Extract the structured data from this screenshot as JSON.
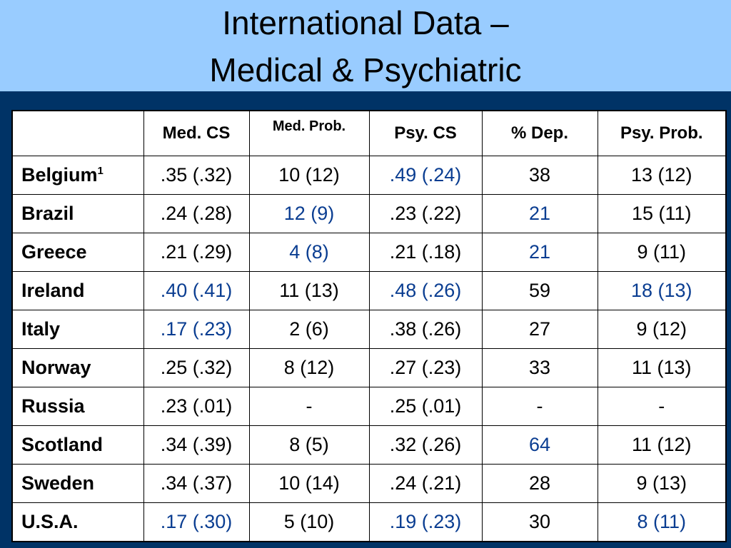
{
  "title": {
    "line1": "International Data –",
    "line2": "Medical & Psychiatric"
  },
  "table": {
    "columns": [
      "",
      "Med. CS",
      "Med. Prob.",
      "Psy. CS",
      "% Dep.",
      "Psy. Prob."
    ],
    "rows": [
      {
        "country": "Belgium",
        "note": "1",
        "cells": [
          ".35 (.32)",
          "10 (12)",
          ".49 (.24)",
          "38",
          "13 (12)"
        ],
        "highlight": [
          false,
          false,
          true,
          false,
          false
        ]
      },
      {
        "country": "Brazil",
        "note": "",
        "cells": [
          ".24 (.28)",
          "12 (9)",
          ".23 (.22)",
          "21",
          "15 (11)"
        ],
        "highlight": [
          false,
          true,
          false,
          true,
          false
        ]
      },
      {
        "country": "Greece",
        "note": "",
        "cells": [
          ".21 (.29)",
          "4 (8)",
          ".21 (.18)",
          "21",
          "9 (11)"
        ],
        "highlight": [
          false,
          true,
          false,
          true,
          false
        ]
      },
      {
        "country": "Ireland",
        "note": "",
        "cells": [
          ".40 (.41)",
          "11 (13)",
          ".48 (.26)",
          "59",
          "18 (13)"
        ],
        "highlight": [
          true,
          false,
          true,
          false,
          true
        ]
      },
      {
        "country": "Italy",
        "note": "",
        "cells": [
          ".17 (.23)",
          "2 (6)",
          ".38 (.26)",
          "27",
          "9 (12)"
        ],
        "highlight": [
          true,
          false,
          false,
          false,
          false
        ]
      },
      {
        "country": "Norway",
        "note": "",
        "cells": [
          ".25 (.32)",
          "8 (12)",
          ".27 (.23)",
          "33",
          "11 (13)"
        ],
        "highlight": [
          false,
          false,
          false,
          false,
          false
        ]
      },
      {
        "country": "Russia",
        "note": "",
        "cells": [
          ".23 (.01)",
          "-",
          ".25 (.01)",
          "-",
          "-"
        ],
        "highlight": [
          false,
          false,
          false,
          false,
          false
        ]
      },
      {
        "country": "Scotland",
        "note": "",
        "cells": [
          ".34 (.39)",
          "8 (5)",
          ".32 (.26)",
          "64",
          "11 (12)"
        ],
        "highlight": [
          false,
          false,
          false,
          true,
          false
        ]
      },
      {
        "country": "Sweden",
        "note": "",
        "cells": [
          ".34 (.37)",
          "10 (14)",
          ".24 (.21)",
          "28",
          "9 (13)"
        ],
        "highlight": [
          false,
          false,
          false,
          false,
          false
        ]
      },
      {
        "country": "U.S.A.",
        "note": "",
        "cells": [
          ".17 (.30)",
          "5 (10)",
          ".19 (.23)",
          "30",
          "8 (11)"
        ],
        "highlight": [
          true,
          false,
          true,
          false,
          true
        ]
      }
    ]
  },
  "colors": {
    "background": "#003366",
    "title_band": "#99ccff",
    "highlight_text": "#0a3d91"
  }
}
